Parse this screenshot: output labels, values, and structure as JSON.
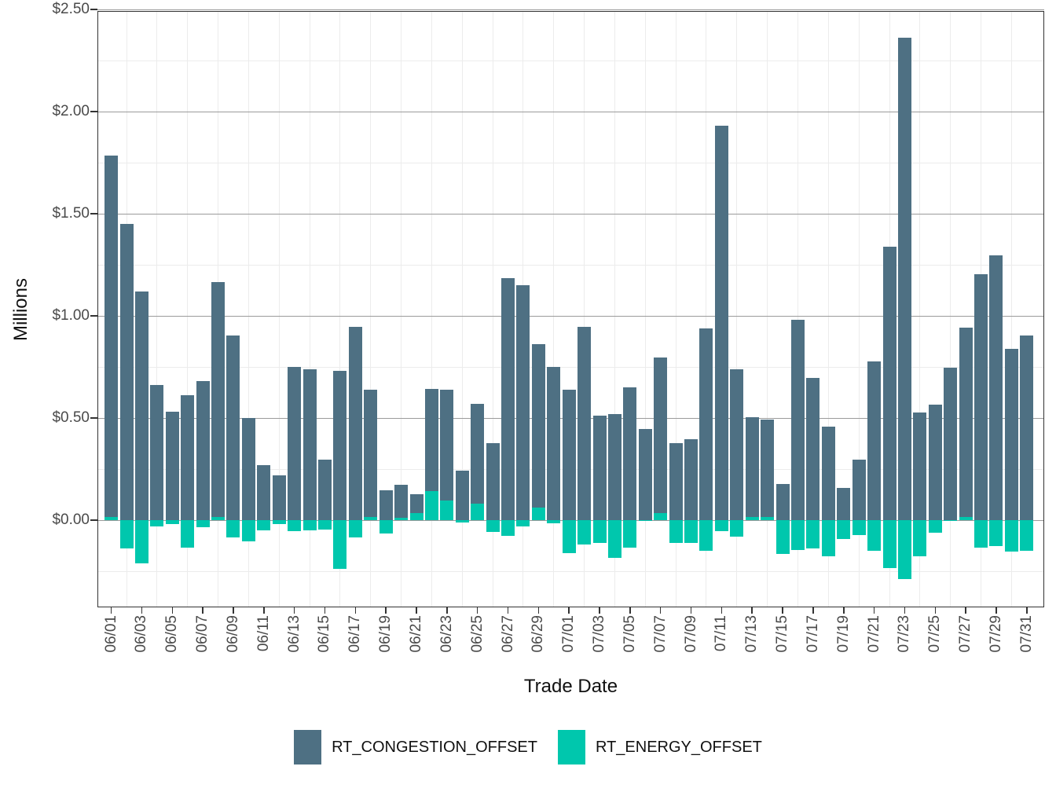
{
  "chart_data": {
    "type": "bar",
    "stacked": true,
    "title": "",
    "xlabel": "Trade Date",
    "ylabel": "Millions",
    "legend_position": "bottom",
    "grid": true,
    "ylim": [
      -0.43,
      2.5
    ],
    "yticks": [
      0,
      0.5,
      1.0,
      1.5,
      2.0,
      2.5
    ],
    "ytick_labels": [
      "$0.00",
      "$0.50",
      "$1.00",
      "$1.50",
      "$2.00",
      "$2.50"
    ],
    "yminor": [
      -0.25,
      0.25,
      0.75,
      1.25,
      1.75,
      2.25
    ],
    "xtick_labels": [
      "06/01",
      "06/03",
      "06/05",
      "06/07",
      "06/09",
      "06/11",
      "06/13",
      "06/15",
      "06/17",
      "06/19",
      "06/21",
      "06/23",
      "06/25",
      "06/27",
      "06/29",
      "07/01",
      "07/03",
      "07/05",
      "07/07",
      "07/09",
      "07/11",
      "07/13",
      "07/15",
      "07/17",
      "07/19",
      "07/21",
      "07/23",
      "07/25",
      "07/27",
      "07/29",
      "07/31"
    ],
    "x": [
      "06/01",
      "06/02",
      "06/03",
      "06/04",
      "06/05",
      "06/06",
      "06/07",
      "06/08",
      "06/09",
      "06/10",
      "06/11",
      "06/12",
      "06/13",
      "06/14",
      "06/15",
      "06/16",
      "06/17",
      "06/18",
      "06/19",
      "06/20",
      "06/21",
      "06/22",
      "06/23",
      "06/24",
      "06/25",
      "06/26",
      "06/27",
      "06/28",
      "06/29",
      "06/30",
      "07/01",
      "07/02",
      "07/03",
      "07/04",
      "07/05",
      "07/06",
      "07/07",
      "07/08",
      "07/09",
      "07/10",
      "07/11",
      "07/12",
      "07/13",
      "07/14",
      "07/15",
      "07/16",
      "07/17",
      "07/18",
      "07/19",
      "07/20",
      "07/21",
      "07/22",
      "07/23",
      "07/24",
      "07/25",
      "07/26",
      "07/27",
      "07/28",
      "07/29",
      "07/30",
      "07/31"
    ],
    "series": [
      {
        "name": "RT_CONGESTION_OFFSET",
        "color": "#4e7083",
        "values": [
          1.77,
          1.45,
          1.12,
          0.66,
          0.53,
          0.61,
          0.68,
          1.15,
          0.905,
          0.5,
          0.27,
          0.22,
          0.75,
          0.74,
          0.295,
          0.73,
          0.945,
          0.625,
          0.148,
          0.163,
          0.09,
          0.5,
          0.545,
          0.242,
          0.49,
          0.377,
          1.185,
          1.15,
          0.8,
          0.75,
          0.64,
          0.945,
          0.51,
          0.52,
          0.65,
          0.447,
          0.76,
          0.377,
          0.396,
          0.94,
          1.93,
          0.74,
          0.487,
          0.475,
          0.177,
          0.98,
          0.698,
          0.457,
          0.157,
          0.298,
          0.778,
          1.34,
          2.36,
          0.527,
          0.565,
          0.745,
          0.928,
          1.205,
          1.295,
          0.837,
          0.905
        ]
      },
      {
        "name": "RT_ENERGY_OFFSET",
        "color": "#00c7ad",
        "values": [
          0.015,
          -0.14,
          -0.21,
          -0.03,
          -0.02,
          -0.135,
          -0.035,
          0.015,
          -0.085,
          -0.105,
          -0.05,
          -0.018,
          -0.055,
          -0.05,
          -0.045,
          -0.237,
          -0.085,
          0.015,
          -0.065,
          0.012,
          0.036,
          0.144,
          0.095,
          -0.011,
          0.08,
          -0.058,
          -0.075,
          -0.032,
          0.06,
          -0.017,
          -0.16,
          -0.12,
          -0.11,
          -0.185,
          -0.135,
          -0.005,
          0.036,
          -0.113,
          -0.112,
          -0.15,
          -0.055,
          -0.082,
          0.015,
          0.016,
          -0.165,
          -0.148,
          -0.14,
          -0.177,
          -0.094,
          -0.072,
          -0.15,
          -0.235,
          -0.29,
          -0.175,
          -0.06,
          -0.005,
          0.016,
          -0.135,
          -0.125,
          -0.153,
          -0.15
        ]
      }
    ]
  }
}
